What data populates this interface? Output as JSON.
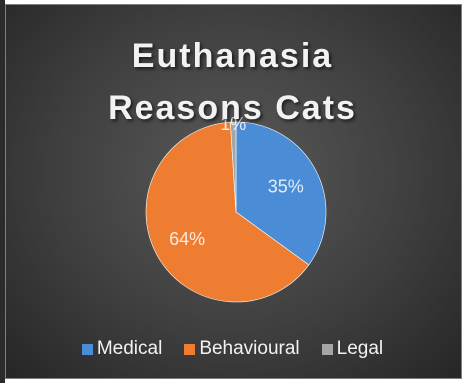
{
  "chart_data": {
    "type": "pie",
    "title_lines": [
      "Euthanasia",
      "Reasons Cats"
    ],
    "categories": [
      "Medical",
      "Behavioural",
      "Legal"
    ],
    "values": [
      35,
      64,
      1
    ],
    "data_labels": [
      "35%",
      "64%",
      "1%"
    ],
    "colors": [
      "#4a8cd6",
      "#ef7d31",
      "#a5a5a5"
    ],
    "legend_position": "bottom"
  }
}
